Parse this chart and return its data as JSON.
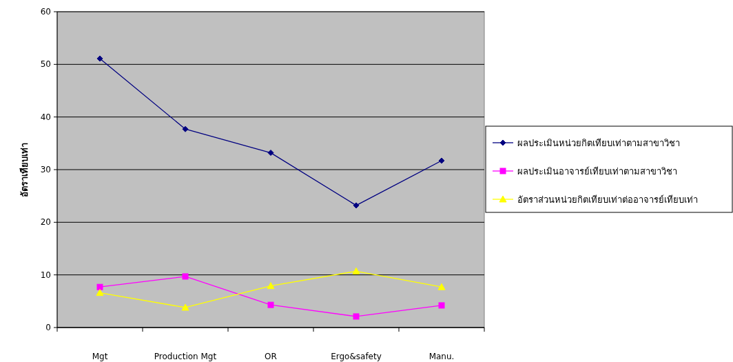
{
  "chart_data": {
    "type": "line",
    "ylabel": "อัตราเทียบเท่า",
    "categories": [
      "Mgt",
      "Production Mgt",
      "OR",
      "Ergo&safety",
      "Manu."
    ],
    "series": [
      {
        "name": "ผลประเมินหน่วยกิตเทียบเท่าตามสาขาวิชา",
        "color": "#000080",
        "marker": "diamond",
        "values": [
          51.1,
          37.7,
          33.2,
          23.2,
          31.7
        ]
      },
      {
        "name": "ผลประเมินอาจารย์เทียบเท่าตามสาขาวิชา",
        "color": "#ff00ff",
        "marker": "square",
        "values": [
          7.7,
          9.7,
          4.3,
          2.1,
          4.2
        ]
      },
      {
        "name": "อัตราส่วนหน่วยกิตเทียบเท่าต่ออาจารย์เทียบเท่า",
        "color": "#ffff00",
        "marker": "triangle",
        "values": [
          6.6,
          3.8,
          7.9,
          10.7,
          7.7
        ]
      }
    ],
    "ylim": [
      0,
      60
    ],
    "yticks": [
      0,
      10,
      20,
      30,
      40,
      50,
      60
    ],
    "grid": "y",
    "legend": "right",
    "line_style": "solid"
  }
}
